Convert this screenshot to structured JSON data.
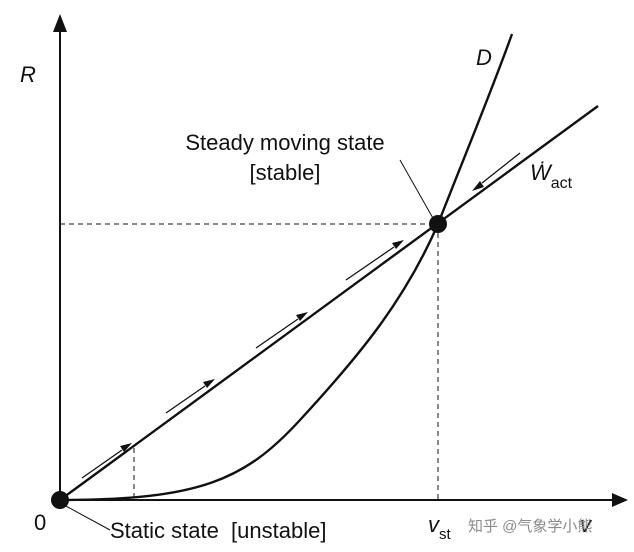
{
  "labels": {
    "y_axis": "R",
    "x_axis": "v",
    "origin": "0",
    "curve_d": "D",
    "line_w": "Ẇ",
    "line_w_sub": "act",
    "steady_line1": "Steady moving state",
    "steady_line2": "[stable]",
    "static_state": "Static state  [unstable]",
    "v_st_main": "v",
    "v_st_sub": "st"
  },
  "watermark": "知乎 @气象学小熊",
  "colors": {
    "ink": "#111111",
    "background": "#ffffff",
    "watermark": "#8a8a8a"
  }
}
